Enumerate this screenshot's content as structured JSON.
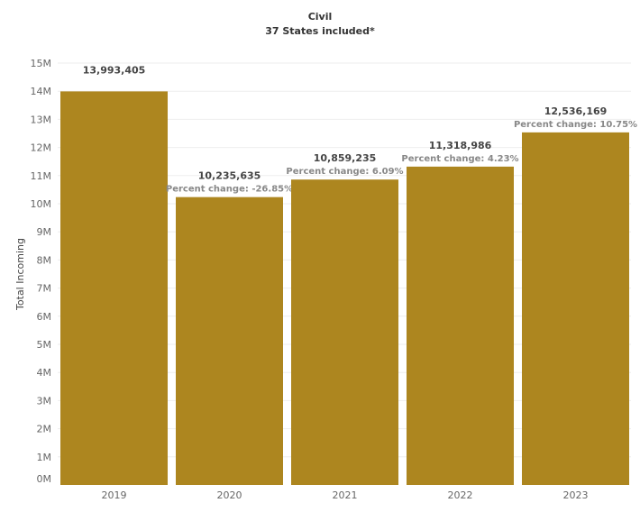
{
  "chart_data": {
    "type": "bar",
    "title": "Civil",
    "subtitle": "37 States included*",
    "xlabel": "",
    "ylabel": "Total Incoming",
    "ylim": [
      0,
      15000000
    ],
    "yticks": [
      "0M",
      "1M",
      "2M",
      "3M",
      "4M",
      "5M",
      "6M",
      "7M",
      "8M",
      "9M",
      "10M",
      "11M",
      "12M",
      "13M",
      "14M",
      "15M"
    ],
    "grid": true,
    "categories": [
      "2019",
      "2020",
      "2021",
      "2022",
      "2023"
    ],
    "values": [
      13993405,
      10235635,
      10859235,
      11318986,
      12536169
    ],
    "value_labels": [
      "13,993,405",
      "10,235,635",
      "10,859,235",
      "11,318,986",
      "12,536,169"
    ],
    "change_labels": [
      "",
      "Percent change: -26.85%",
      "Percent change: 6.09%",
      "Percent change: 4.23%",
      "Percent change: 10.75%"
    ],
    "bar_color": "#AD861F"
  }
}
